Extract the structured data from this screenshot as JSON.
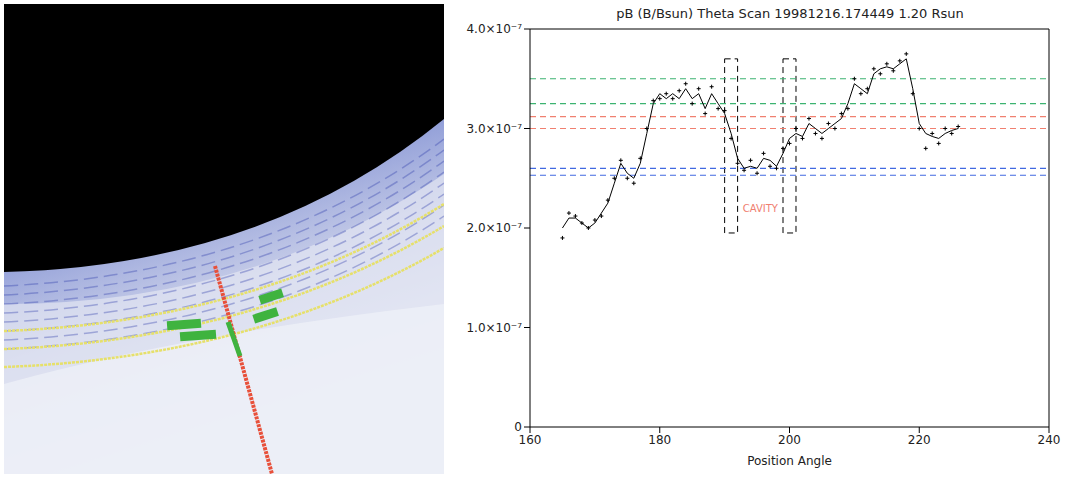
{
  "chart_data": {
    "type": "line",
    "title": "pB (B/Bsun) Theta Scan 19981216.174449 1.20 Rsun",
    "x_label": "Position Angle",
    "x": [
      165,
      166,
      167,
      168,
      169,
      170,
      171,
      172,
      173,
      174,
      175,
      176,
      177,
      178,
      179,
      180,
      181,
      182,
      183,
      184,
      185,
      186,
      187,
      188,
      189,
      190,
      191,
      192,
      193,
      194,
      195,
      196,
      197,
      198,
      199,
      200,
      201,
      202,
      203,
      204,
      205,
      206,
      207,
      208,
      209,
      210,
      211,
      212,
      213,
      214,
      215,
      216,
      217,
      218,
      219,
      220,
      221,
      222,
      223,
      224,
      225,
      226
    ],
    "series": [
      {
        "type": "scatter",
        "marker": "plus",
        "color": "#000000",
        "values": [
          1.9e-07,
          2.15e-07,
          2.12e-07,
          2.05e-07,
          2e-07,
          2.08e-07,
          2.12e-07,
          2.28e-07,
          2.5e-07,
          2.68e-07,
          2.5e-07,
          2.45e-07,
          2.7e-07,
          3e-07,
          3.28e-07,
          3.3e-07,
          3.35e-07,
          3.3e-07,
          3.38e-07,
          3.45e-07,
          3.25e-07,
          3.4e-07,
          3.15e-07,
          3.42e-07,
          3.2e-07,
          3.18e-07,
          2.9e-07,
          2.65e-07,
          2.58e-07,
          2.68e-07,
          2.55e-07,
          2.75e-07,
          2.62e-07,
          2.6e-07,
          2.8e-07,
          2.85e-07,
          3e-07,
          2.9e-07,
          3.1e-07,
          2.95e-07,
          2.9e-07,
          3.05e-07,
          3e-07,
          3.15e-07,
          3.2e-07,
          3.5e-07,
          3.35e-07,
          3.4e-07,
          3.6e-07,
          3.55e-07,
          3.65e-07,
          3.58e-07,
          3.68e-07,
          3.75e-07,
          3.35e-07,
          3e-07,
          2.8e-07,
          2.95e-07,
          2.85e-07,
          3e-07,
          2.95e-07,
          3.02e-07
        ]
      },
      {
        "type": "line",
        "line_style": "solid",
        "color": "#000000",
        "values": [
          2e-07,
          2.1e-07,
          2.1e-07,
          2.05e-07,
          2e-07,
          2.05e-07,
          2.15e-07,
          2.25e-07,
          2.45e-07,
          2.65e-07,
          2.55e-07,
          2.5e-07,
          2.65e-07,
          2.95e-07,
          3.25e-07,
          3.35e-07,
          3.3e-07,
          3.35e-07,
          3.3e-07,
          3.4e-07,
          3.3e-07,
          3.35e-07,
          3.2e-07,
          3.35e-07,
          3.25e-07,
          3.15e-07,
          2.95e-07,
          2.7e-07,
          2.6e-07,
          2.62e-07,
          2.6e-07,
          2.7e-07,
          2.68e-07,
          2.62e-07,
          2.75e-07,
          2.9e-07,
          2.95e-07,
          2.92e-07,
          3.05e-07,
          3e-07,
          2.95e-07,
          3e-07,
          3.05e-07,
          3.1e-07,
          3.25e-07,
          3.45e-07,
          3.4e-07,
          3.35e-07,
          3.55e-07,
          3.6e-07,
          3.62e-07,
          3.6e-07,
          3.65e-07,
          3.7e-07,
          3.4e-07,
          3.05e-07,
          2.95e-07,
          2.92e-07,
          2.9e-07,
          2.95e-07,
          2.98e-07,
          3e-07
        ]
      }
    ],
    "xlim": [
      160,
      240
    ],
    "xticks": [
      160,
      180,
      200,
      220,
      240
    ],
    "ylim": [
      0,
      4e-07
    ],
    "yticks": [
      0,
      {
        "value": 1e-07,
        "label": "1.0×10⁻⁷"
      },
      {
        "value": 2e-07,
        "label": "2.0×10⁻⁷"
      },
      {
        "value": 3e-07,
        "label": "3.0×10⁻⁷"
      },
      {
        "value": 4e-07,
        "label": "4.0×10⁻⁷"
      }
    ],
    "reference_lines": [
      {
        "value": 3.5e-07,
        "color": "#3cb371",
        "line_style": "dashed"
      },
      {
        "value": 3.25e-07,
        "color": "#3cb371",
        "line_style": "dashed"
      },
      {
        "value": 3.12e-07,
        "color": "#f08070",
        "line_style": "dashed"
      },
      {
        "value": 3e-07,
        "color": "#f08070",
        "line_style": "dashed"
      },
      {
        "value": 2.6e-07,
        "color": "#4169e1",
        "line_style": "dashed"
      },
      {
        "value": 2.53e-07,
        "color": "#4169e1",
        "line_style": "dashed"
      }
    ],
    "regions": [
      {
        "xlim": [
          190,
          192
        ],
        "ylim": [
          1.95e-07,
          3.7e-07
        ],
        "color": "#000000",
        "line_style": "dashed"
      },
      {
        "xlim": [
          199,
          201
        ],
        "ylim": [
          1.95e-07,
          3.7e-07
        ],
        "color": "#000000",
        "line_style": "dashed"
      }
    ],
    "annotations": [
      {
        "text": "CAVITY",
        "x": 195.5,
        "y": 2.2e-07,
        "color": "#f08070"
      }
    ],
    "grid": false,
    "tick_labels": true
  }
}
